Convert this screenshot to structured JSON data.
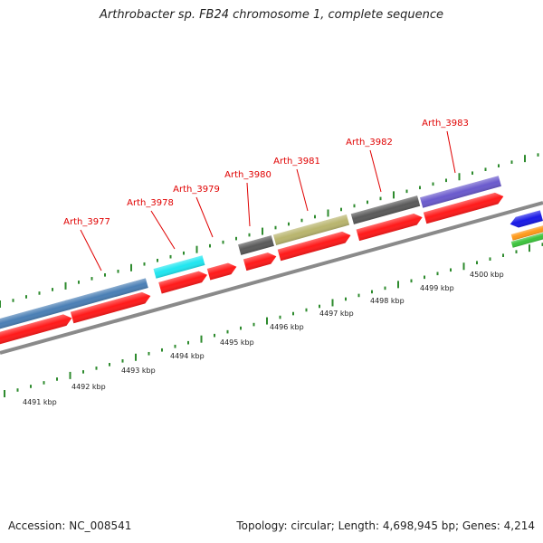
{
  "title": "Arthrobacter sp. FB24 chromosome 1, complete sequence",
  "accession": "Accession: NC_008541",
  "summary": "Topology: circular; Length: 4,698,945 bp; Genes: 4,214",
  "gene_labels": [
    "Arth_3977",
    "Arth_3978",
    "Arth_3979",
    "Arth_3980",
    "Arth_3981",
    "Arth_3982",
    "Arth_3983"
  ],
  "kbp_labels": [
    "4491 kbp",
    "4492 kbp",
    "4493 kbp",
    "4494 kbp",
    "4495 kbp",
    "4496 kbp",
    "4497 kbp",
    "4498 kbp",
    "4499 kbp",
    "4500 kbp"
  ],
  "colors": {
    "backbone": "#8a8a8a",
    "tick": "#2e8b2e",
    "gene_label": "#e00000",
    "cds": "#ff1a1a",
    "steelblue": "#4a7fb5",
    "cyan": "#20e6f0",
    "gray": "#5a5a5a",
    "olive": "#b9b56e",
    "purple": "#6a5acd",
    "blue": "#1a1ae6",
    "orange": "#ff9a1a",
    "green": "#3cc43c"
  }
}
